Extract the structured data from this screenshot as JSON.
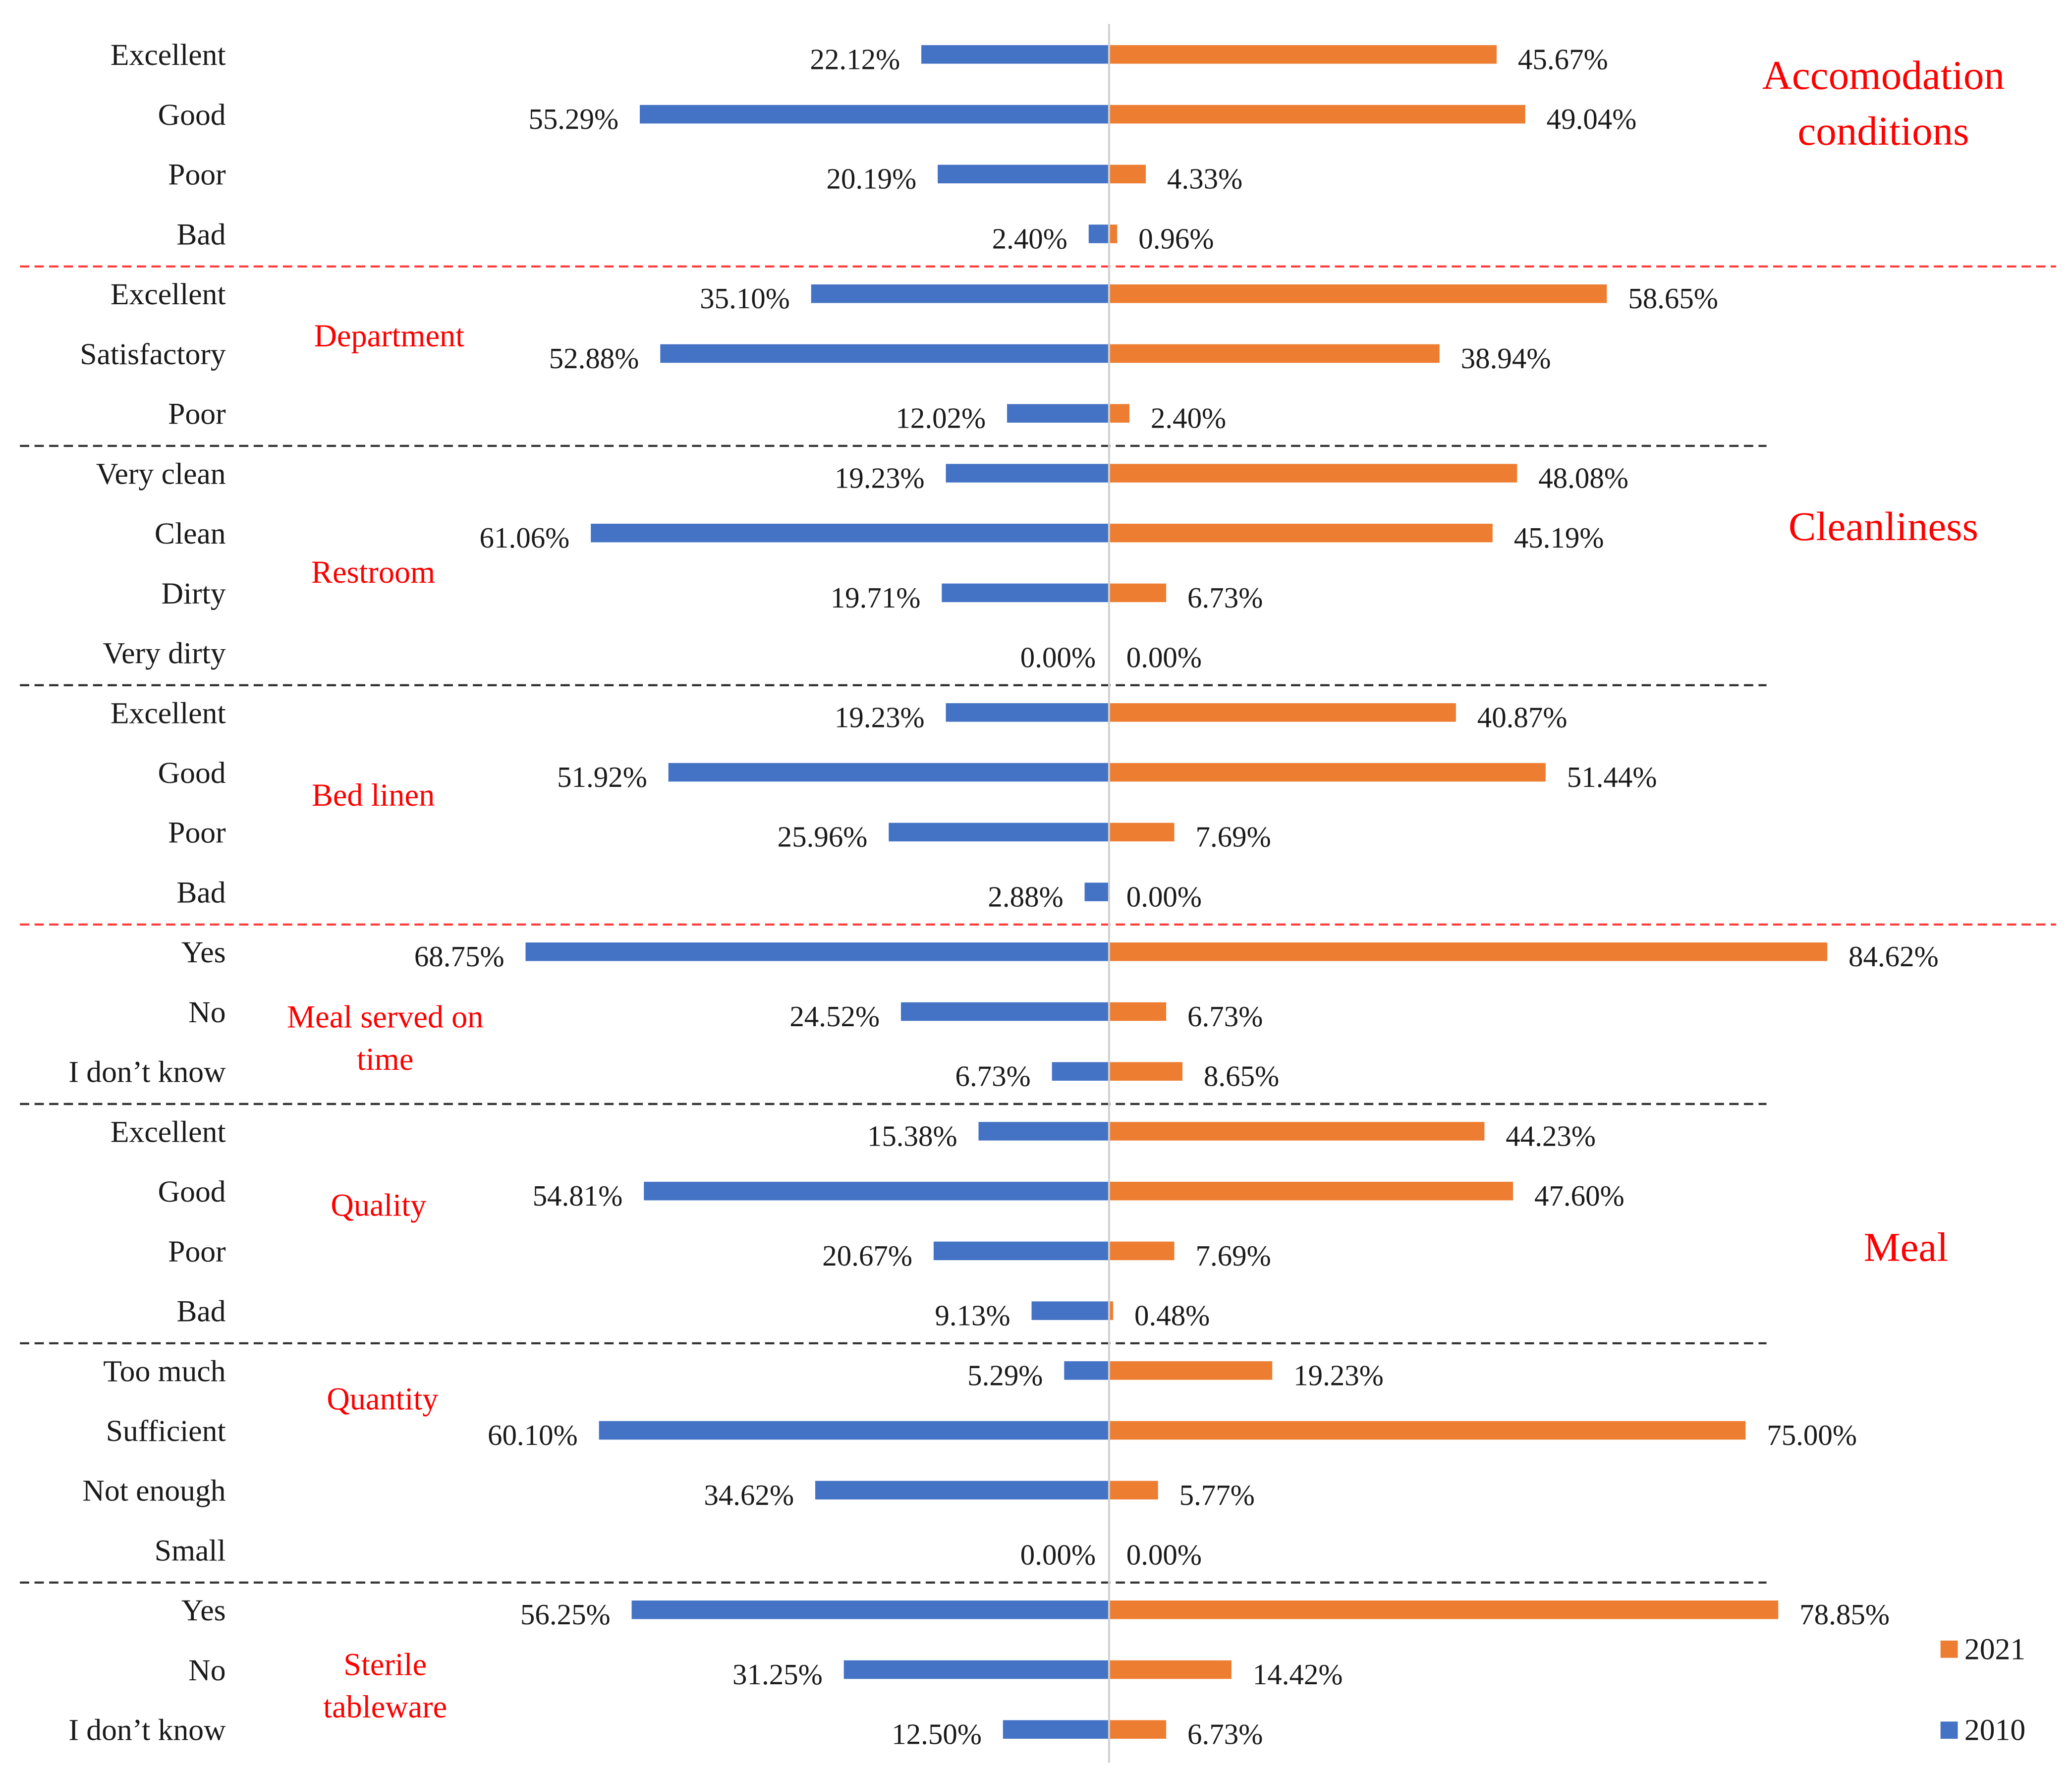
{
  "chart_data": {
    "type": "bar",
    "orientation": "horizontal-diverging",
    "series_names": [
      "2010",
      "2021"
    ],
    "colors": {
      "2010": "#4472C4",
      "2021": "#ED7D31",
      "section_divider": "#ff3b3b",
      "group_divider": "#333333",
      "annotation": "#ff0000"
    },
    "x_unit": "%",
    "sections": [
      {
        "label": [
          "Accomodation",
          "conditions"
        ],
        "groups": [
          0
        ]
      },
      {
        "label": [
          "Cleanliness"
        ],
        "groups": [
          1,
          2,
          3
        ]
      },
      {
        "label": [
          "Meal"
        ],
        "groups": [
          4,
          5,
          6,
          7
        ]
      }
    ],
    "groups": [
      {
        "label": [],
        "divider_after": "section",
        "rows": [
          {
            "category": "Excellent",
            "v2010": 22.12,
            "v2021": 45.67
          },
          {
            "category": "Good",
            "v2010": 55.29,
            "v2021": 49.04
          },
          {
            "category": "Poor",
            "v2010": 20.19,
            "v2021": 4.33
          },
          {
            "category": "Bad",
            "v2010": 2.4,
            "v2021": 0.96
          }
        ]
      },
      {
        "label": [
          "Department"
        ],
        "divider_after": "group",
        "rows": [
          {
            "category": "Excellent",
            "v2010": 35.1,
            "v2021": 58.65
          },
          {
            "category": "Satisfactory",
            "v2010": 52.88,
            "v2021": 38.94
          },
          {
            "category": "Poor",
            "v2010": 12.02,
            "v2021": 2.4
          }
        ]
      },
      {
        "label": [
          "Restroom"
        ],
        "divider_after": "group",
        "rows": [
          {
            "category": "Very clean",
            "v2010": 19.23,
            "v2021": 48.08
          },
          {
            "category": "Clean",
            "v2010": 61.06,
            "v2021": 45.19
          },
          {
            "category": "Dirty",
            "v2010": 19.71,
            "v2021": 6.73
          },
          {
            "category": "Very dirty",
            "v2010": 0.0,
            "v2021": 0.0
          }
        ]
      },
      {
        "label": [
          "Bed linen"
        ],
        "divider_after": "section",
        "rows": [
          {
            "category": "Excellent",
            "v2010": 19.23,
            "v2021": 40.87
          },
          {
            "category": "Good",
            "v2010": 51.92,
            "v2021": 51.44
          },
          {
            "category": "Poor",
            "v2010": 25.96,
            "v2021": 7.69
          },
          {
            "category": "Bad",
            "v2010": 2.88,
            "v2021": 0.0
          }
        ]
      },
      {
        "label": [
          "Meal served on",
          "time"
        ],
        "divider_after": "group",
        "rows": [
          {
            "category": "Yes",
            "v2010": 68.75,
            "v2021": 84.62
          },
          {
            "category": "No",
            "v2010": 24.52,
            "v2021": 6.73
          },
          {
            "category": "I don’t know",
            "v2010": 6.73,
            "v2021": 8.65
          }
        ]
      },
      {
        "label": [
          "Quality"
        ],
        "divider_after": "group",
        "rows": [
          {
            "category": "Excellent",
            "v2010": 15.38,
            "v2021": 44.23
          },
          {
            "category": "Good",
            "v2010": 54.81,
            "v2021": 47.6
          },
          {
            "category": "Poor",
            "v2010": 20.67,
            "v2021": 7.69
          },
          {
            "category": "Bad",
            "v2010": 9.13,
            "v2021": 0.48
          }
        ]
      },
      {
        "label": [
          "Quantity"
        ],
        "divider_after": "group",
        "rows": [
          {
            "category": "Too much",
            "v2010": 5.29,
            "v2021": 19.23
          },
          {
            "category": "Sufficient",
            "v2010": 60.1,
            "v2021": 75.0
          },
          {
            "category": "Not enough",
            "v2010": 34.62,
            "v2021": 5.77
          },
          {
            "category": "Small",
            "v2010": 0.0,
            "v2021": 0.0
          }
        ]
      },
      {
        "label": [
          "Sterile",
          "tableware"
        ],
        "divider_after": null,
        "rows": [
          {
            "category": "Yes",
            "v2010": 56.25,
            "v2021": 78.85
          },
          {
            "category": "No",
            "v2010": 31.25,
            "v2021": 14.42
          },
          {
            "category": "I don’t know",
            "v2010": 12.5,
            "v2021": 6.73
          }
        ]
      }
    ],
    "legend": {
      "placement": "bottom-right",
      "entries": [
        "2021",
        "2010"
      ]
    }
  }
}
